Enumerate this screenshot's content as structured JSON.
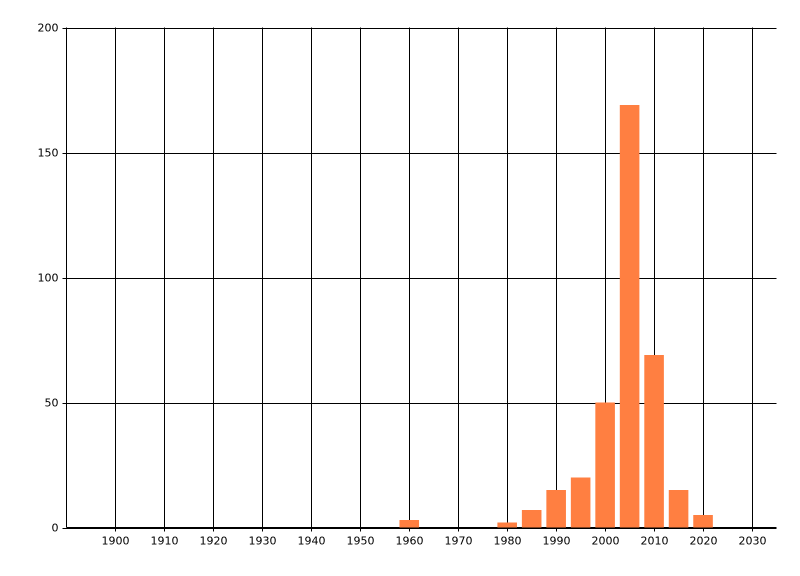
{
  "chart_data": {
    "type": "bar",
    "x": [
      1960,
      1980,
      1985,
      1990,
      1995,
      2000,
      2005,
      2010,
      2015,
      2020
    ],
    "values": [
      3,
      2,
      7,
      15,
      20,
      50,
      169,
      69,
      15,
      5
    ],
    "color": "#ff7f41",
    "xlim": [
      1890,
      2035
    ],
    "xticks": [
      1900,
      1910,
      1920,
      1930,
      1940,
      1950,
      1960,
      1970,
      1980,
      1990,
      2000,
      2010,
      2020,
      2030
    ],
    "ylim": [
      0,
      200
    ],
    "yticks": [
      0,
      50,
      100,
      150,
      200
    ],
    "grid": true
  }
}
